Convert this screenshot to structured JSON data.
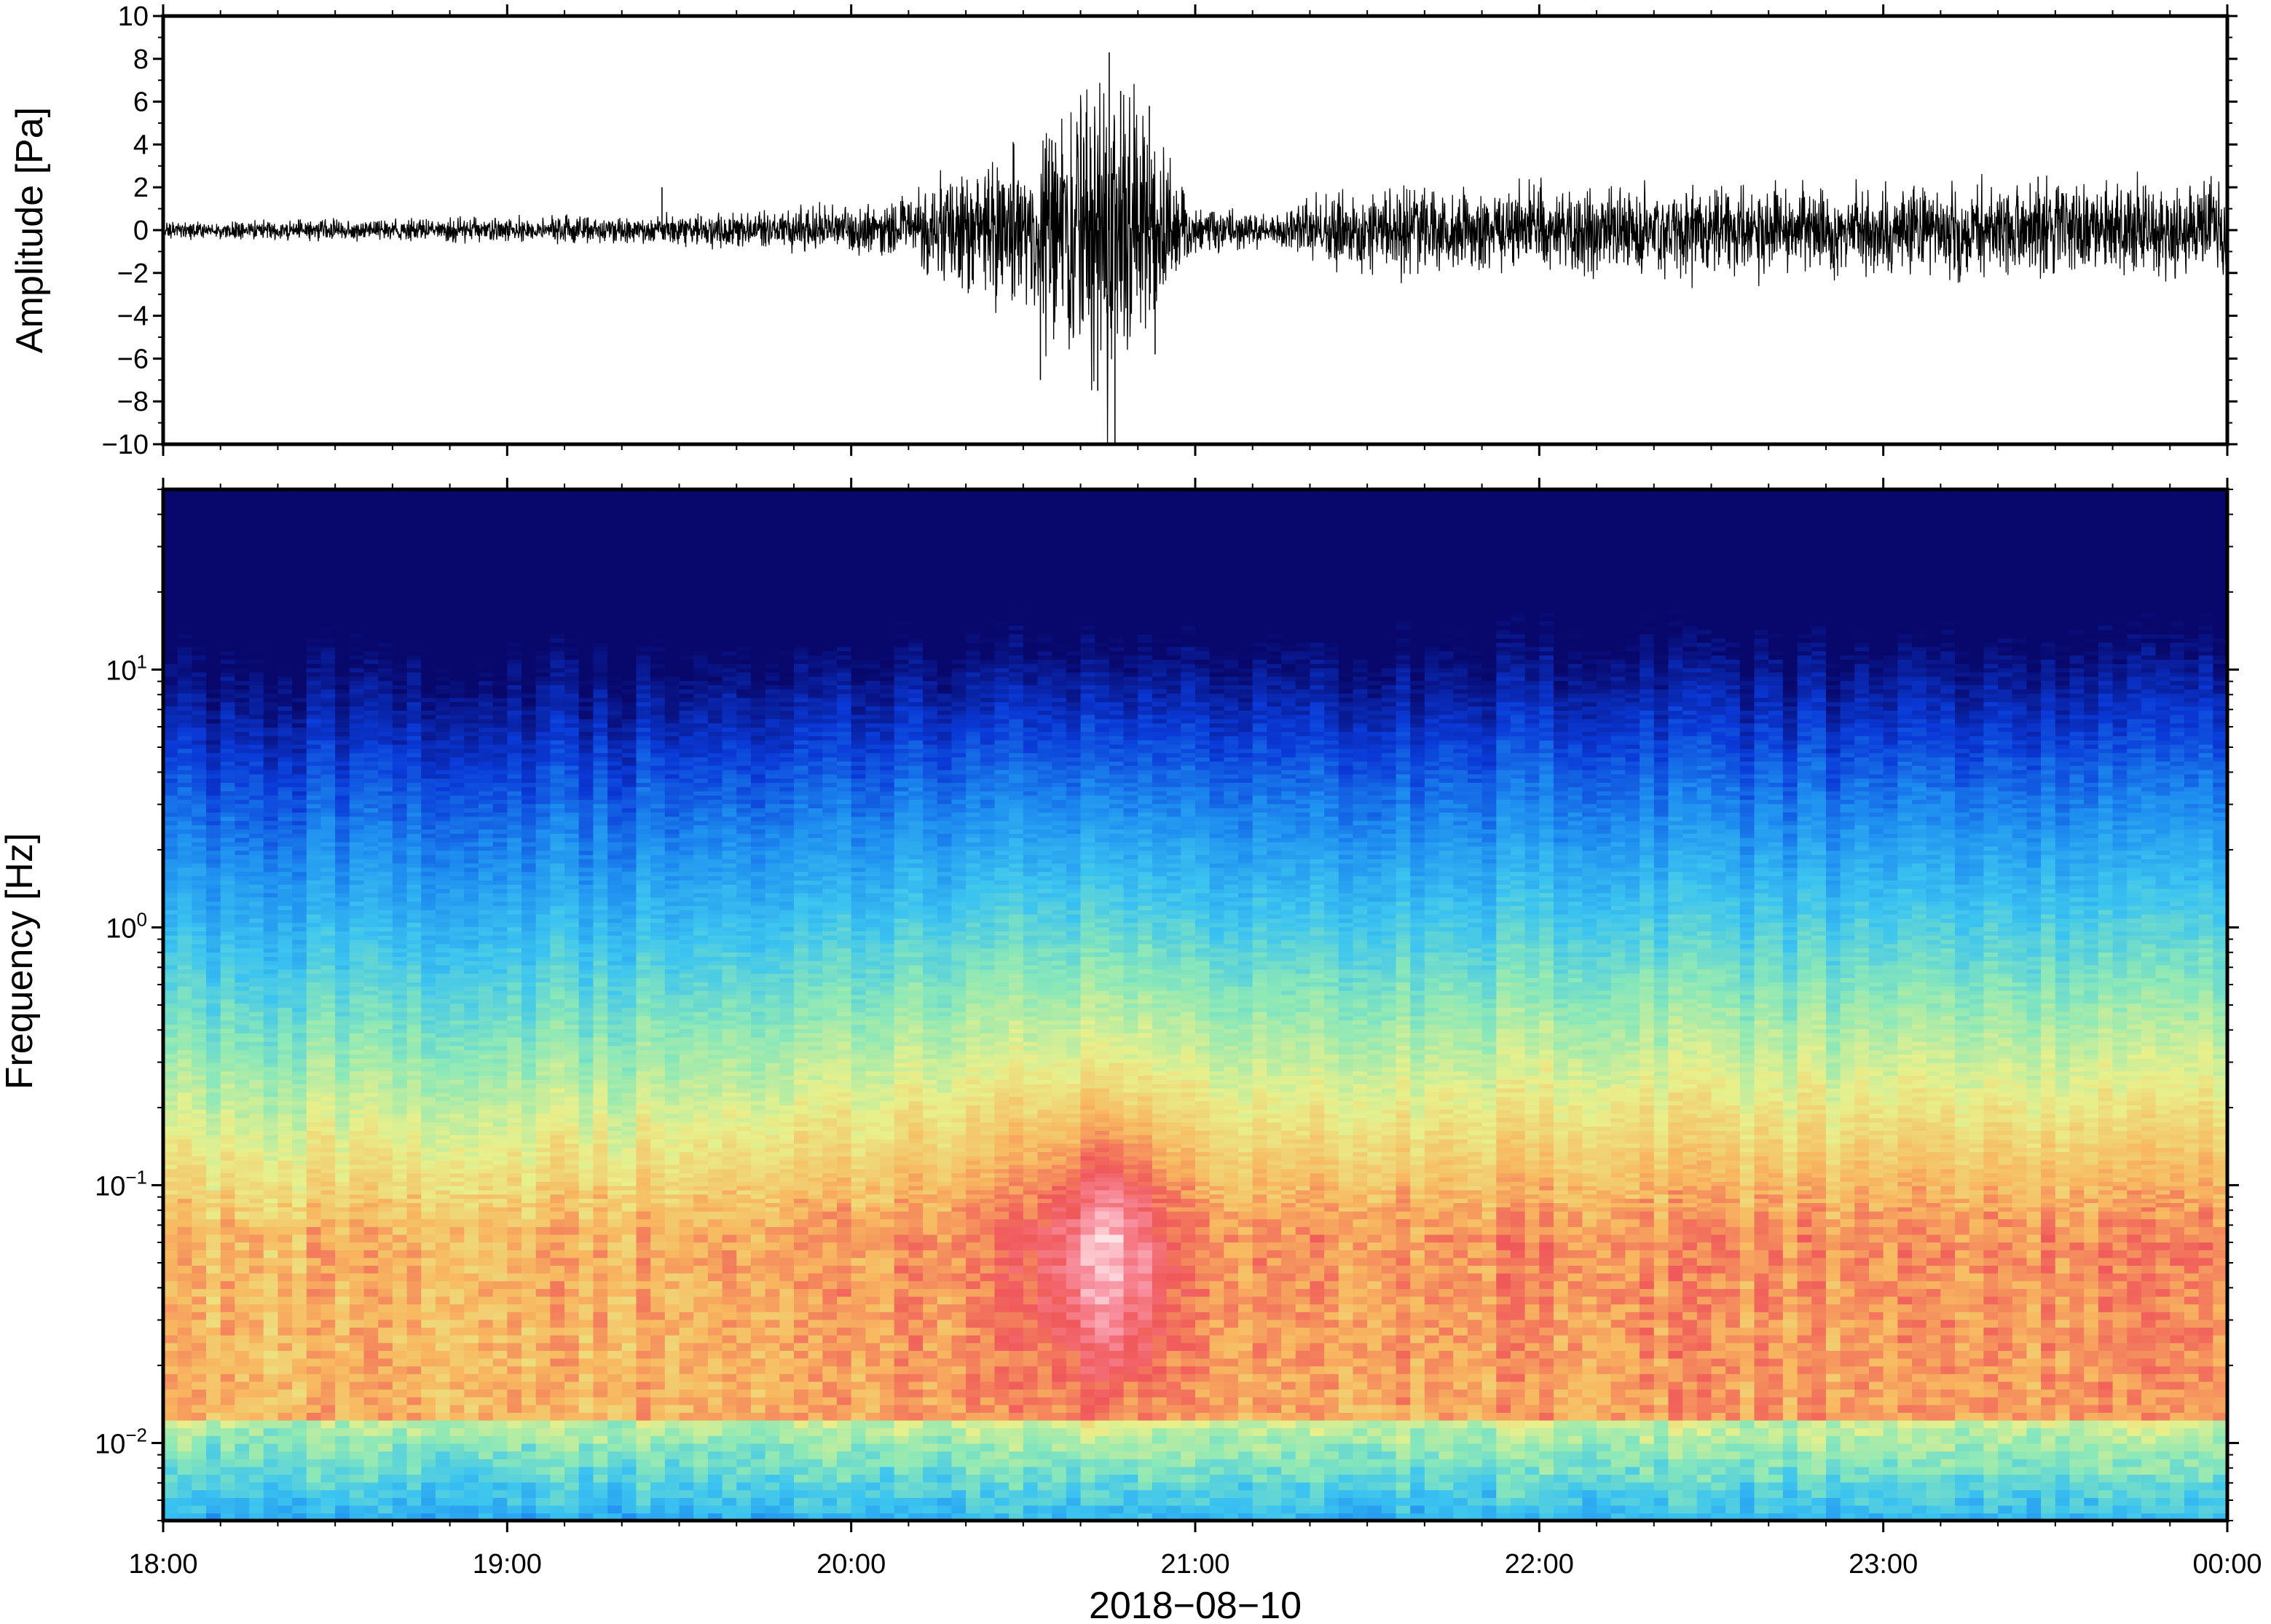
{
  "chart_data": [
    {
      "type": "line",
      "panel": "waveform",
      "ylabel": "Amplitude [Pa]",
      "xlabel": "",
      "ylim": [
        -10,
        10
      ],
      "y_ticks": [
        "10",
        "8",
        "6",
        "4",
        "2",
        "0",
        "−2",
        "−4",
        "−6",
        "−8",
        "−10"
      ],
      "y_tick_values": [
        10,
        8,
        6,
        4,
        2,
        0,
        -2,
        -4,
        -6,
        -8,
        -10
      ],
      "x_range": [
        "18:00",
        "00:00"
      ],
      "grid": false,
      "series": [
        {
          "color": "#000000",
          "envelope_x": [
            "18:00",
            "18:30",
            "19:00",
            "19:30",
            "19:50",
            "20:10",
            "20:15",
            "20:30",
            "20:40",
            "20:45",
            "20:50",
            "21:00",
            "21:15",
            "21:20",
            "21:30",
            "22:00",
            "23:00",
            "00:00"
          ],
          "envelope_amp": [
            0.3,
            0.35,
            0.4,
            0.5,
            0.7,
            1.0,
            2.0,
            2.8,
            4.5,
            7.0,
            4.0,
            0.8,
            0.5,
            1.3,
            1.4,
            1.5,
            1.5,
            1.6
          ],
          "peaks": [
            {
              "x": "19:27",
              "y": 2.0
            },
            {
              "x": "20:33",
              "y": -7.0
            },
            {
              "x": "20:35",
              "y": 4.2
            },
            {
              "x": "20:41",
              "y": 5.5
            },
            {
              "x": "20:43",
              "y": -7.5
            },
            {
              "x": "20:45",
              "y": 8.3
            },
            {
              "x": "20:46",
              "y": -10.0
            },
            {
              "x": "20:47",
              "y": 6.5
            },
            {
              "x": "20:52",
              "y": 5.8
            },
            {
              "x": "20:53",
              "y": -5.8
            },
            {
              "x": "23:27",
              "y": 2.5
            },
            {
              "x": "23:28",
              "y": -2.0
            }
          ]
        }
      ]
    },
    {
      "type": "heatmap",
      "panel": "spectrogram",
      "ylabel": "Frequency [Hz]",
      "xlabel": "2018−08−10",
      "y_scale": "log",
      "ylim": [
        0.005,
        50
      ],
      "y_ticks": [
        {
          "base": "10",
          "exp": "1",
          "value": 10
        },
        {
          "base": "10",
          "exp": "0",
          "value": 1
        },
        {
          "base": "10",
          "exp": "−1",
          "value": 0.1
        },
        {
          "base": "10",
          "exp": "−2",
          "value": 0.01
        }
      ],
      "x_ticks": [
        "18:00",
        "19:00",
        "20:00",
        "21:00",
        "22:00",
        "23:00",
        "00:00"
      ],
      "colormap": [
        "#08086c",
        "#0a3ad8",
        "#1e8ef0",
        "#3cc4f0",
        "#8be8b8",
        "#e8f08c",
        "#f8b860",
        "#f0585a",
        "#f890a0",
        "#fff6f6"
      ],
      "power_rel": {
        "event_peak_time": "20:45",
        "event_peak_freq_hz": 0.05,
        "intensity_by_time": [
          {
            "t": "18:00",
            "level": 0.0
          },
          {
            "t": "19:00",
            "level": 0.05
          },
          {
            "t": "19:45",
            "level": 0.25
          },
          {
            "t": "20:15",
            "level": 0.55
          },
          {
            "t": "20:40",
            "level": 0.85
          },
          {
            "t": "20:45",
            "level": 1.0
          },
          {
            "t": "21:00",
            "level": 0.55
          },
          {
            "t": "21:15",
            "level": 0.35
          },
          {
            "t": "21:20",
            "level": 0.45
          },
          {
            "t": "22:00",
            "level": 0.48
          },
          {
            "t": "23:00",
            "level": 0.5
          },
          {
            "t": "00:00",
            "level": 0.45
          }
        ]
      }
    }
  ]
}
